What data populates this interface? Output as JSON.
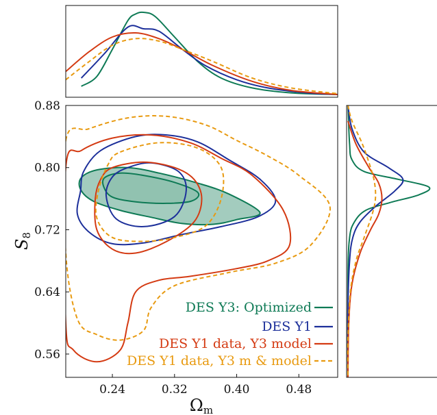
{
  "chart_data": {
    "type": "contour",
    "xlabel": "Ω",
    "xlabel_sub": "m",
    "ylabel": "S",
    "ylabel_sub": "8",
    "xlim": [
      0.18,
      0.53
    ],
    "ylim": [
      0.53,
      0.88
    ],
    "xticks": [
      0.24,
      0.32,
      0.4,
      0.48
    ],
    "yticks": [
      0.56,
      0.64,
      0.72,
      0.8,
      0.88
    ],
    "xtick_labels": [
      "0.24",
      "0.32",
      "0.40",
      "0.48"
    ],
    "ytick_labels": [
      "0.56",
      "0.64",
      "0.72",
      "0.80",
      "0.88"
    ],
    "legend_position": "lower-right",
    "series": [
      {
        "name": "DES Y3: Optimized",
        "color": "#0e7a55",
        "dash": "solid",
        "filled": true,
        "contour_68": [
          [
            0.23,
            0.787
          ],
          [
            0.25,
            0.793
          ],
          [
            0.28,
            0.79
          ],
          [
            0.32,
            0.781
          ],
          [
            0.35,
            0.768
          ],
          [
            0.342,
            0.757
          ],
          [
            0.31,
            0.754
          ],
          [
            0.27,
            0.756
          ],
          [
            0.24,
            0.762
          ],
          [
            0.229,
            0.775
          ]
        ],
        "contour_95": [
          [
            0.2,
            0.787
          ],
          [
            0.22,
            0.797
          ],
          [
            0.26,
            0.8
          ],
          [
            0.3,
            0.793
          ],
          [
            0.35,
            0.78
          ],
          [
            0.39,
            0.766
          ],
          [
            0.43,
            0.742
          ],
          [
            0.4,
            0.733
          ],
          [
            0.37,
            0.727
          ],
          [
            0.33,
            0.728
          ],
          [
            0.29,
            0.736
          ],
          [
            0.25,
            0.745
          ],
          [
            0.215,
            0.757
          ],
          [
            0.199,
            0.772
          ]
        ],
        "omega_marginal": [
          [
            0.2,
            0.1
          ],
          [
            0.22,
            0.22
          ],
          [
            0.24,
            0.55
          ],
          [
            0.26,
            0.9
          ],
          [
            0.27,
            0.98
          ],
          [
            0.28,
            1.0
          ],
          [
            0.295,
            0.95
          ],
          [
            0.32,
            0.7
          ],
          [
            0.35,
            0.4
          ],
          [
            0.38,
            0.2
          ],
          [
            0.42,
            0.08
          ],
          [
            0.47,
            0.02
          ],
          [
            0.53,
            0.0
          ]
        ],
        "s8_marginal": [
          [
            0.88,
            0.0
          ],
          [
            0.83,
            0.02
          ],
          [
            0.81,
            0.05
          ],
          [
            0.795,
            0.2
          ],
          [
            0.785,
            0.62
          ],
          [
            0.775,
            1.0
          ],
          [
            0.765,
            0.88
          ],
          [
            0.755,
            0.52
          ],
          [
            0.745,
            0.22
          ],
          [
            0.73,
            0.08
          ],
          [
            0.71,
            0.02
          ],
          [
            0.66,
            0.0
          ],
          [
            0.53,
            0.0
          ]
        ]
      },
      {
        "name": "DES Y1",
        "color": "#1c2f9a",
        "dash": "solid",
        "filled": false,
        "contour_68": [
          [
            0.26,
            0.8
          ],
          [
            0.29,
            0.806
          ],
          [
            0.325,
            0.795
          ],
          [
            0.335,
            0.77
          ],
          [
            0.32,
            0.737
          ],
          [
            0.28,
            0.724
          ],
          [
            0.245,
            0.734
          ],
          [
            0.232,
            0.764
          ],
          [
            0.24,
            0.788
          ]
        ],
        "contour_95": [
          [
            0.203,
            0.795
          ],
          [
            0.225,
            0.822
          ],
          [
            0.27,
            0.84
          ],
          [
            0.31,
            0.842
          ],
          [
            0.35,
            0.833
          ],
          [
            0.39,
            0.81
          ],
          [
            0.43,
            0.785
          ],
          [
            0.45,
            0.757
          ],
          [
            0.428,
            0.737
          ],
          [
            0.38,
            0.724
          ],
          [
            0.33,
            0.714
          ],
          [
            0.28,
            0.703
          ],
          [
            0.24,
            0.702
          ],
          [
            0.21,
            0.717
          ],
          [
            0.195,
            0.74
          ],
          [
            0.199,
            0.77
          ]
        ],
        "omega_marginal": [
          [
            0.2,
            0.2
          ],
          [
            0.23,
            0.5
          ],
          [
            0.26,
            0.82
          ],
          [
            0.28,
            0.8
          ],
          [
            0.3,
            0.77
          ],
          [
            0.33,
            0.55
          ],
          [
            0.36,
            0.35
          ],
          [
            0.4,
            0.18
          ],
          [
            0.44,
            0.08
          ],
          [
            0.49,
            0.02
          ],
          [
            0.53,
            0.0
          ]
        ],
        "s8_marginal": [
          [
            0.88,
            0.0
          ],
          [
            0.85,
            0.05
          ],
          [
            0.82,
            0.2
          ],
          [
            0.8,
            0.5
          ],
          [
            0.785,
            0.68
          ],
          [
            0.77,
            0.58
          ],
          [
            0.75,
            0.34
          ],
          [
            0.73,
            0.15
          ],
          [
            0.71,
            0.06
          ],
          [
            0.68,
            0.02
          ],
          [
            0.62,
            0.0
          ],
          [
            0.53,
            0.0
          ]
        ]
      },
      {
        "name": "DES Y1 data, Y3 model",
        "color": "#d43a12",
        "dash": "solid",
        "filled": false,
        "contour_68": [
          [
            0.24,
            0.8
          ],
          [
            0.28,
            0.807
          ],
          [
            0.32,
            0.8
          ],
          [
            0.345,
            0.785
          ],
          [
            0.355,
            0.76
          ],
          [
            0.345,
            0.73
          ],
          [
            0.31,
            0.705
          ],
          [
            0.27,
            0.69
          ],
          [
            0.24,
            0.695
          ],
          [
            0.22,
            0.72
          ],
          [
            0.218,
            0.76
          ],
          [
            0.225,
            0.785
          ]
        ],
        "contour_95": [
          [
            0.18,
            0.8
          ],
          [
            0.2,
            0.822
          ],
          [
            0.24,
            0.838
          ],
          [
            0.29,
            0.842
          ],
          [
            0.34,
            0.832
          ],
          [
            0.38,
            0.812
          ],
          [
            0.42,
            0.79
          ],
          [
            0.46,
            0.745
          ],
          [
            0.468,
            0.7
          ],
          [
            0.44,
            0.68
          ],
          [
            0.4,
            0.67
          ],
          [
            0.34,
            0.66
          ],
          [
            0.3,
            0.655
          ],
          [
            0.27,
            0.64
          ],
          [
            0.26,
            0.6
          ],
          [
            0.25,
            0.565
          ],
          [
            0.22,
            0.55
          ],
          [
            0.19,
            0.565
          ],
          [
            0.18,
            0.6
          ]
        ],
        "omega_marginal": [
          [
            0.18,
            0.28
          ],
          [
            0.21,
            0.52
          ],
          [
            0.24,
            0.7
          ],
          [
            0.27,
            0.75
          ],
          [
            0.3,
            0.68
          ],
          [
            0.33,
            0.55
          ],
          [
            0.37,
            0.35
          ],
          [
            0.42,
            0.16
          ],
          [
            0.47,
            0.05
          ],
          [
            0.53,
            0.0
          ]
        ],
        "s8_marginal": [
          [
            0.86,
            0.0
          ],
          [
            0.83,
            0.1
          ],
          [
            0.8,
            0.26
          ],
          [
            0.78,
            0.38
          ],
          [
            0.76,
            0.42
          ],
          [
            0.74,
            0.38
          ],
          [
            0.72,
            0.28
          ],
          [
            0.69,
            0.15
          ],
          [
            0.65,
            0.05
          ],
          [
            0.6,
            0.01
          ],
          [
            0.53,
            0.0
          ]
        ]
      },
      {
        "name": "DES Y1 data, Y3 m & model",
        "color": "#e89a10",
        "dash": "dashed",
        "filled": false,
        "contour_68": [
          [
            0.25,
            0.82
          ],
          [
            0.3,
            0.832
          ],
          [
            0.35,
            0.825
          ],
          [
            0.38,
            0.8
          ],
          [
            0.38,
            0.76
          ],
          [
            0.36,
            0.725
          ],
          [
            0.32,
            0.71
          ],
          [
            0.28,
            0.705
          ],
          [
            0.24,
            0.71
          ],
          [
            0.22,
            0.735
          ],
          [
            0.222,
            0.77
          ],
          [
            0.235,
            0.805
          ]
        ],
        "contour_95": [
          [
            0.18,
            0.835
          ],
          [
            0.21,
            0.85
          ],
          [
            0.26,
            0.864
          ],
          [
            0.31,
            0.866
          ],
          [
            0.36,
            0.855
          ],
          [
            0.4,
            0.835
          ],
          [
            0.44,
            0.815
          ],
          [
            0.48,
            0.79
          ],
          [
            0.52,
            0.75
          ],
          [
            0.495,
            0.7
          ],
          [
            0.45,
            0.677
          ],
          [
            0.39,
            0.665
          ],
          [
            0.32,
            0.648
          ],
          [
            0.29,
            0.62
          ],
          [
            0.28,
            0.59
          ],
          [
            0.25,
            0.578
          ],
          [
            0.22,
            0.585
          ],
          [
            0.195,
            0.605
          ],
          [
            0.18,
            0.69
          ]
        ],
        "omega_marginal": [
          [
            0.18,
            0.18
          ],
          [
            0.21,
            0.4
          ],
          [
            0.24,
            0.6
          ],
          [
            0.27,
            0.68
          ],
          [
            0.3,
            0.65
          ],
          [
            0.33,
            0.55
          ],
          [
            0.37,
            0.4
          ],
          [
            0.42,
            0.2
          ],
          [
            0.47,
            0.08
          ],
          [
            0.53,
            0.01
          ]
        ],
        "s8_marginal": [
          [
            0.88,
            0.0
          ],
          [
            0.86,
            0.05
          ],
          [
            0.83,
            0.18
          ],
          [
            0.8,
            0.28
          ],
          [
            0.78,
            0.33
          ],
          [
            0.76,
            0.34
          ],
          [
            0.74,
            0.3
          ],
          [
            0.71,
            0.2
          ],
          [
            0.68,
            0.1
          ],
          [
            0.64,
            0.03
          ],
          [
            0.58,
            0.0
          ],
          [
            0.53,
            0.0
          ]
        ]
      }
    ]
  }
}
